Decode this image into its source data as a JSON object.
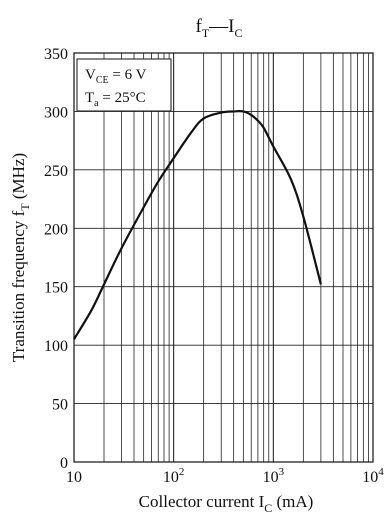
{
  "chart_data": {
    "type": "line",
    "title": {
      "main": "f",
      "main_sub": "T",
      "sep": "—",
      "second": "I",
      "second_sub": "C"
    },
    "xlabel": {
      "text": "Collector current  I",
      "sub": "C",
      "unit": "  (mA)"
    },
    "ylabel": {
      "text": "Transition frequency  f",
      "sub": "T",
      "unit": "  (MHz)"
    },
    "x_scale": "log",
    "xlim": [
      10,
      10000
    ],
    "ylim": [
      0,
      350
    ],
    "x_ticks": [
      {
        "value": 10,
        "base": "10",
        "exp": ""
      },
      {
        "value": 100,
        "base": "10",
        "exp": "2"
      },
      {
        "value": 1000,
        "base": "10",
        "exp": "3"
      },
      {
        "value": 10000,
        "base": "10",
        "exp": "4"
      }
    ],
    "y_ticks": [
      "0",
      "50",
      "100",
      "150",
      "200",
      "250",
      "300",
      "350"
    ],
    "grid": true,
    "annotation": {
      "line1": {
        "main": "V",
        "sub": "CE",
        "rest": " = 6 V"
      },
      "line2": {
        "main": "T",
        "sub": "a",
        "rest": " = 25°C"
      }
    },
    "series": [
      {
        "x": [
          10,
          15,
          20,
          30,
          50,
          70,
          100,
          150,
          200,
          300,
          400,
          500,
          600,
          700,
          800,
          1000,
          1500,
          2000,
          3000
        ],
        "y": [
          105,
          130,
          152,
          183,
          218,
          240,
          260,
          282,
          294,
          299,
          300,
          300,
          297,
          292,
          286,
          270,
          242,
          210,
          152
        ]
      }
    ]
  }
}
